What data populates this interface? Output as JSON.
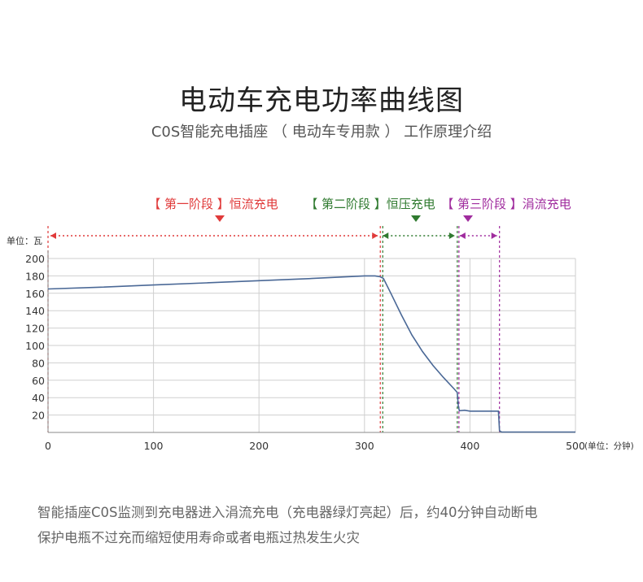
{
  "header": {
    "title": "电动车充电功率曲线图",
    "subtitle": "C0S智能充电插座 （ 电动车专用款 ） 工作原理介绍"
  },
  "footer": {
    "line1": "智能插座C0S监测到充电器进入涓流充电（充电器绿灯亮起）后，约40分钟自动断电",
    "line2": "保护电瓶不过充而缩短使用寿命或者电瓶过热发生火灾"
  },
  "colors": {
    "stage1": "#e03a3a",
    "stage2": "#2f7a2f",
    "stage3": "#a02c9e",
    "line": "#4a6896",
    "grid": "#cfcfcf"
  },
  "chart_data": {
    "type": "line",
    "ylabel": "单位：瓦",
    "xunit": "(单位：分钟)",
    "xlim": [
      0,
      500
    ],
    "ylim": [
      0,
      200
    ],
    "x_ticks": [
      0,
      100,
      200,
      300,
      400,
      500
    ],
    "y_ticks": [
      20,
      40,
      60,
      80,
      100,
      120,
      140,
      160,
      180,
      200
    ],
    "stages": [
      {
        "label": "【 第一阶段 】恒流充电",
        "start": 0,
        "end": 315,
        "color": "#e03a3a"
      },
      {
        "label": "【 第二阶段 】恒压充电",
        "start": 315,
        "end": 388,
        "color": "#2f7a2f"
      },
      {
        "label": "【 第三阶段 】涓流充电",
        "start": 388,
        "end": 428,
        "color": "#a02c9e"
      }
    ],
    "series": [
      {
        "x": [
          0,
          50,
          100,
          150,
          200,
          250,
          300,
          310,
          315,
          318,
          325,
          335,
          345,
          355,
          365,
          375,
          385,
          388,
          389,
          390,
          395,
          400,
          410,
          420,
          427,
          428,
          430,
          450,
          500
        ],
        "y": [
          165,
          167,
          169.5,
          172,
          174.5,
          177,
          180,
          180,
          179,
          177,
          160,
          135,
          112,
          93,
          77,
          63,
          50,
          46,
          30,
          25,
          25.5,
          24.5,
          24.5,
          24.5,
          24.5,
          2,
          0.5,
          0.5,
          0.5
        ]
      }
    ]
  }
}
